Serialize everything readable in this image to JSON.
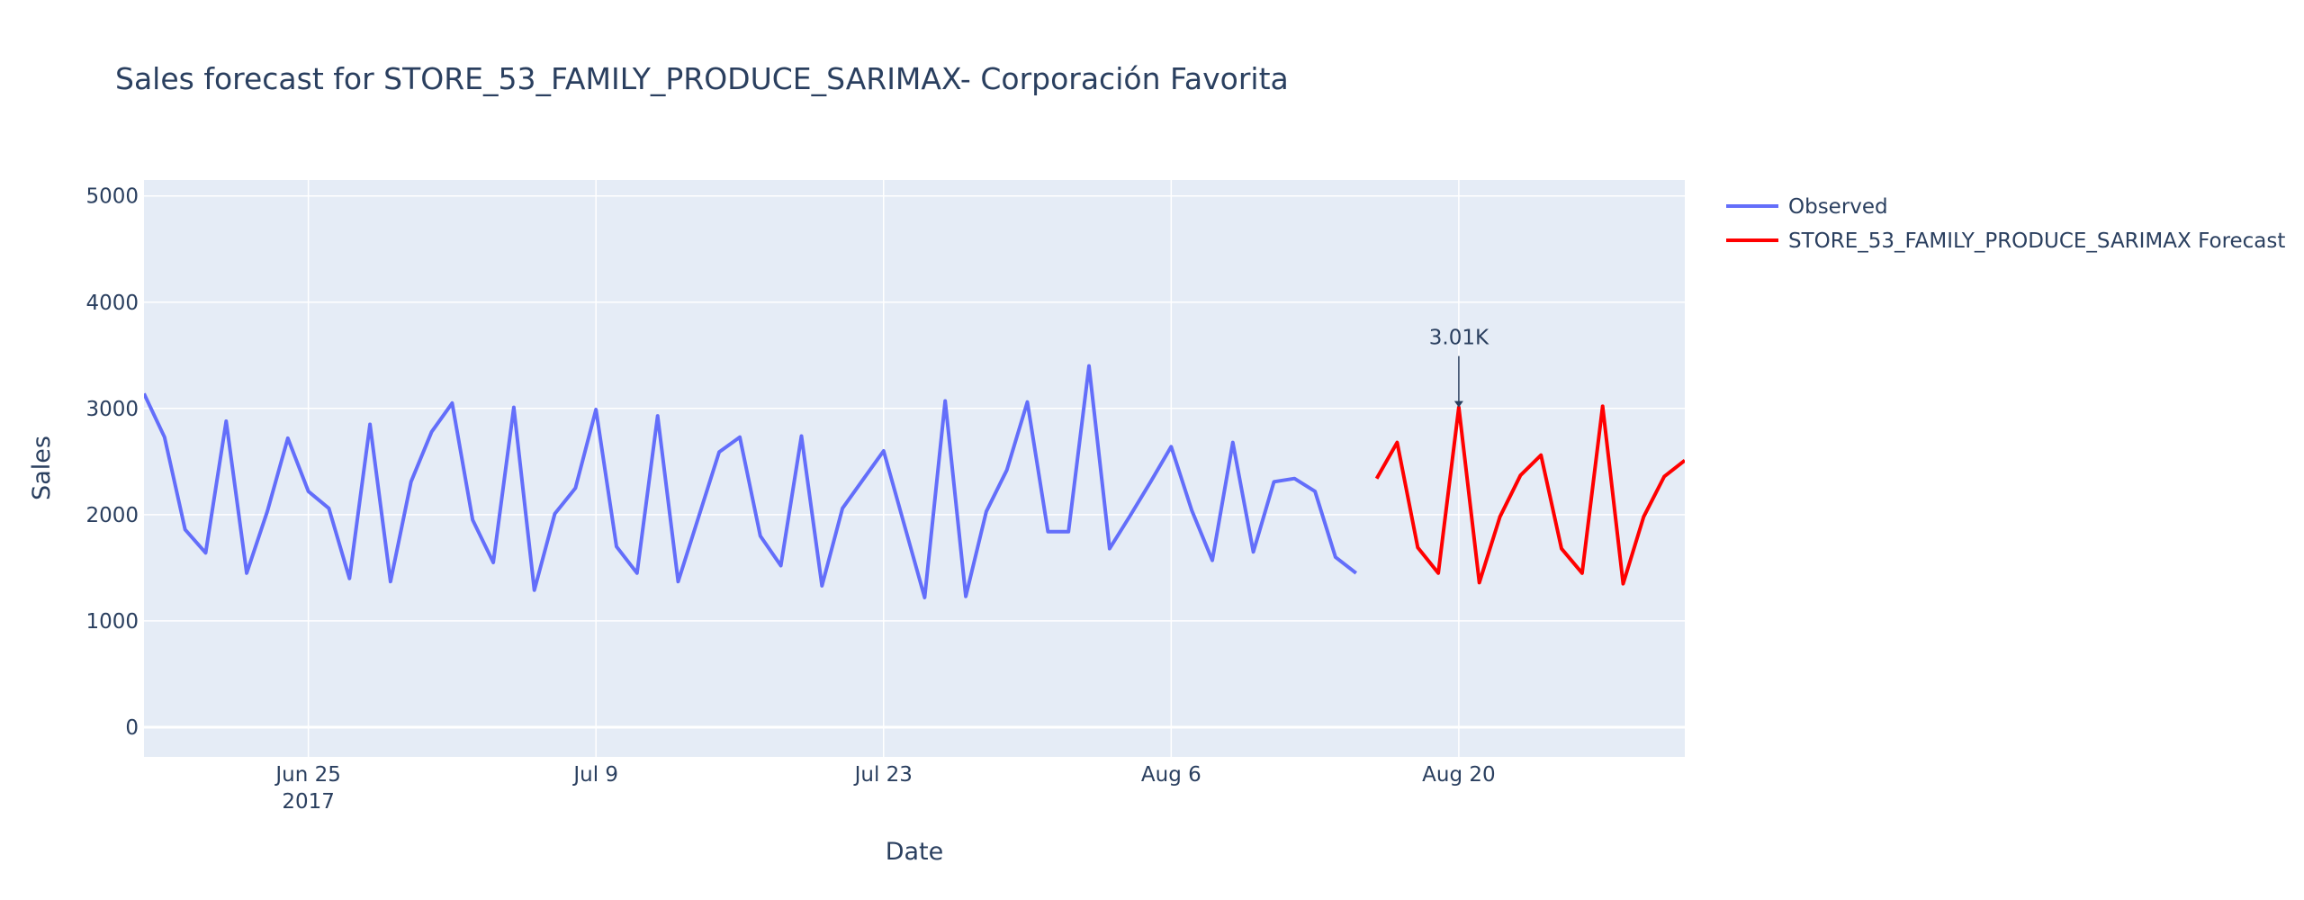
{
  "chart_data": {
    "type": "line",
    "title": "Sales forecast for STORE_53_FAMILY_PRODUCE_SARIMAX- Corporación Favorita",
    "xlabel": "Date",
    "ylabel": "Sales",
    "xlim": [
      "2017-06-17",
      "2017-08-31"
    ],
    "ylim": [
      -280,
      5150
    ],
    "y_ticks": [
      0,
      1000,
      2000,
      3000,
      4000,
      5000
    ],
    "x_ticks": [
      {
        "date": "2017-06-25",
        "label": "Jun 25",
        "sublabel": "2017"
      },
      {
        "date": "2017-07-09",
        "label": "Jul 9",
        "sublabel": ""
      },
      {
        "date": "2017-07-23",
        "label": "Jul 23",
        "sublabel": ""
      },
      {
        "date": "2017-08-06",
        "label": "Aug 6",
        "sublabel": ""
      },
      {
        "date": "2017-08-20",
        "label": "Aug 20",
        "sublabel": ""
      }
    ],
    "grid": true,
    "legend_position": "top-right",
    "background": "#E5ECF6",
    "series": [
      {
        "name": "Observed",
        "color": "#636efa",
        "start_date": "2017-06-17",
        "values": [
          3140,
          2730,
          1860,
          1640,
          2880,
          1450,
          2030,
          2720,
          2220,
          2060,
          1400,
          2850,
          1370,
          2310,
          2780,
          3050,
          1950,
          1550,
          3010,
          1290,
          2010,
          2250,
          2990,
          1700,
          1450,
          2930,
          1370,
          1980,
          2590,
          2730,
          1800,
          1520,
          2740,
          1330,
          2060,
          2330,
          2600,
          1910,
          1220,
          3070,
          1230,
          2030,
          2420,
          3060,
          1840,
          1840,
          3400,
          1680,
          1990,
          2310,
          2640,
          2040,
          1570,
          2680,
          1650,
          2310,
          2340,
          2220,
          1600,
          1450
        ]
      },
      {
        "name": "STORE_53_FAMILY_PRODUCE_SARIMAX Forecast",
        "color": "#ff0000",
        "start_date": "2017-08-16",
        "values": [
          2340,
          2680,
          1690,
          1450,
          3010,
          1360,
          1980,
          2370,
          2560,
          1680,
          1450,
          3020,
          1350,
          1980,
          2360,
          2510
        ]
      }
    ],
    "annotations": [
      {
        "text": "3.01K",
        "date": "2017-08-20",
        "value": 3010
      }
    ]
  }
}
